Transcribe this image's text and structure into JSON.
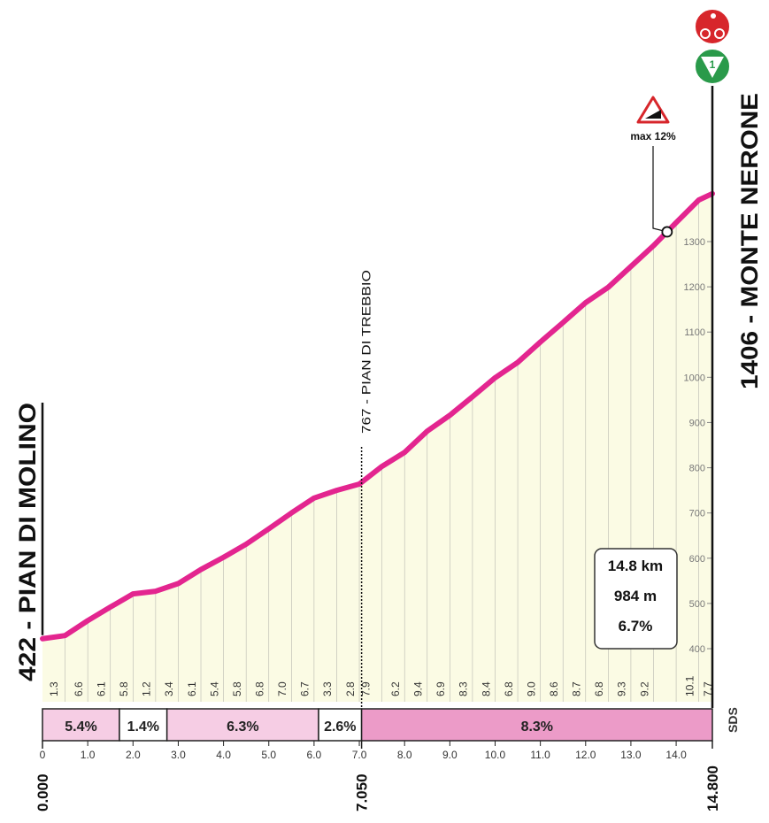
{
  "chart_data": {
    "type": "elevation_profile",
    "start_label": "422 - PIAN DI MOLINO",
    "end_label": "1406 - MONTE NERONE",
    "waypoint": {
      "label": "767 - PIAN DI TREBBIO",
      "x": 7.05
    },
    "annotation": {
      "text": "max 12%",
      "x": 13.8
    },
    "summary": [
      "14.8 km",
      "984 m",
      "6.7%"
    ],
    "category": "1",
    "logo": "SDS",
    "x": [
      0,
      0.5,
      1.0,
      1.5,
      2.0,
      2.5,
      3.0,
      3.5,
      4.0,
      4.5,
      5.0,
      5.5,
      6.0,
      6.5,
      7.0,
      7.5,
      8.0,
      8.5,
      9.0,
      9.5,
      10.0,
      10.5,
      11.0,
      11.5,
      12.0,
      12.5,
      13.0,
      13.5,
      14.0,
      14.5,
      14.8
    ],
    "elevation": [
      422,
      429,
      462,
      492,
      521,
      527,
      544,
      575,
      602,
      631,
      665,
      700,
      733,
      750,
      764,
      803,
      834,
      881,
      916,
      957,
      999,
      1033,
      1078,
      1121,
      1165,
      1199,
      1245,
      1291,
      1342,
      1392,
      1406
    ],
    "line_color": "#e3258f",
    "fill_color": "#fbfbe4",
    "gradient_labels": {
      "x": [
        0.25,
        0.8,
        1.3,
        1.8,
        2.3,
        2.8,
        3.3,
        3.8,
        4.3,
        4.8,
        5.3,
        5.8,
        6.3,
        6.8,
        7.15,
        7.8,
        8.3,
        8.8,
        9.3,
        9.8,
        10.3,
        10.8,
        11.3,
        11.8,
        12.3,
        12.8,
        13.3,
        14.3,
        14.7
      ],
      "values": [
        1.3,
        6.6,
        6.1,
        5.8,
        1.2,
        3.4,
        6.1,
        5.4,
        5.8,
        6.8,
        7.0,
        6.7,
        3.3,
        2.8,
        7.9,
        6.2,
        9.4,
        6.9,
        8.3,
        8.4,
        6.8,
        9.0,
        8.6,
        8.7,
        6.8,
        9.3,
        9.2,
        10.1,
        7.7
      ],
      "value_labels": [
        "1.3",
        "6.6",
        "6.1",
        "5.8",
        "1.2",
        "3.4",
        "6.1",
        "5.4",
        "5.8",
        "6.8",
        "7.0",
        "6.7",
        "3.3",
        "2.8",
        "7.9",
        "6.2",
        "9.4",
        "6.9",
        "8.3",
        "8.4",
        "6.8",
        "9.0",
        "8.6",
        "8.7",
        "6.8",
        "9.3",
        "9.2",
        "10.1",
        "7.7"
      ]
    },
    "sections": [
      {
        "start": 0,
        "end": 1.7,
        "value": 5.4,
        "label": "5.4%",
        "color": "#f6cde4"
      },
      {
        "start": 1.7,
        "end": 2.75,
        "value": 1.4,
        "label": "1.4%",
        "color": "#ffffff"
      },
      {
        "start": 2.75,
        "end": 6.1,
        "value": 6.3,
        "label": "6.3%",
        "color": "#f6cde4"
      },
      {
        "start": 6.1,
        "end": 7.05,
        "value": 2.6,
        "label": "2.6%",
        "color": "#ffffff"
      },
      {
        "start": 7.05,
        "end": 14.8,
        "value": 8.3,
        "label": "8.3%",
        "color": "#ec9bc8"
      }
    ],
    "xlim": [
      0,
      14.8
    ],
    "xticks": [
      0,
      {
        "value": 1,
        "label": "1.0"
      },
      {
        "value": 2,
        "label": "2.0"
      },
      {
        "value": 3,
        "label": "3.0"
      },
      {
        "value": 4,
        "label": "4.0"
      },
      {
        "value": 5,
        "label": "5.0"
      },
      {
        "value": 6,
        "label": "6.0"
      },
      {
        "value": 7,
        "label": "7.0"
      },
      {
        "value": 8,
        "label": "8.0"
      },
      {
        "value": 9,
        "label": "9.0"
      },
      {
        "value": 10,
        "label": "10.0"
      },
      {
        "value": 11,
        "label": "11.0"
      },
      {
        "value": 12,
        "label": "12.0"
      },
      {
        "value": 13,
        "label": "13.0"
      },
      {
        "value": 14,
        "label": "14.0"
      }
    ],
    "km_markers": [
      {
        "value": 0,
        "label": "0.000"
      },
      {
        "value": 7.05,
        "label": "7.050"
      },
      {
        "value": 14.8,
        "label": "14.800"
      }
    ],
    "ylim": [
      400,
      1300
    ],
    "yticks": [
      400,
      500,
      600,
      700,
      800,
      900,
      1000,
      1100,
      1200,
      1300
    ]
  }
}
